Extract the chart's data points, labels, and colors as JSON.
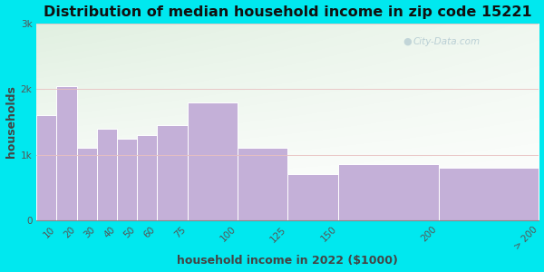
{
  "title": "Distribution of median household income in zip code 15221",
  "xlabel": "household income in 2022 ($1000)",
  "ylabel": "households",
  "categories": [
    "10",
    "20",
    "30",
    "40",
    "50",
    "60",
    "75",
    "100",
    "125",
    "150",
    "200",
    "> 200"
  ],
  "edges": [
    0,
    10,
    20,
    30,
    40,
    50,
    60,
    75,
    100,
    125,
    150,
    200,
    250
  ],
  "tick_positions": [
    10,
    20,
    30,
    40,
    50,
    60,
    75,
    100,
    125,
    150,
    200,
    250
  ],
  "values": [
    1600,
    2050,
    1100,
    1400,
    1250,
    1300,
    1450,
    1800,
    1100,
    700,
    850,
    800
  ],
  "bar_color": "#c4b0d8",
  "bar_edge_color": "#ffffff",
  "background_outer": "#00e8ef",
  "background_inner_top_left": "#d6eed6",
  "background_inner_right": "#f8f4fc",
  "yticks": [
    0,
    1000,
    2000,
    3000
  ],
  "ytick_labels": [
    "0",
    "1k",
    "2k",
    "3k"
  ],
  "ylim": [
    0,
    3000
  ],
  "xlim": [
    0,
    250
  ],
  "title_fontsize": 11.5,
  "axis_label_fontsize": 9,
  "tick_fontsize": 7.5,
  "watermark": "City-Data.com"
}
